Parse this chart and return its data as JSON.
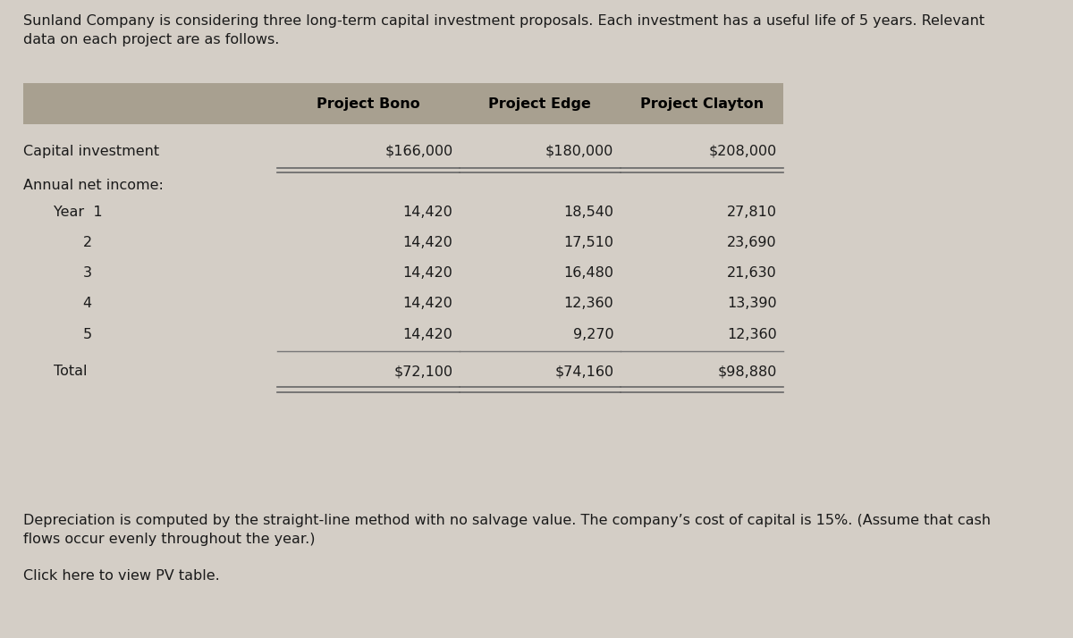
{
  "title_text": "Sunland Company is considering three long-term capital investment proposals. Each investment has a useful life of 5 years. Relevant\ndata on each project are as follows.",
  "header_row": [
    "",
    "Project Bono",
    "Project Edge",
    "Project Clayton"
  ],
  "header_bg": "#a8a090",
  "capital_row": [
    "Capital investment",
    "$166,000",
    "$180,000",
    "$208,000"
  ],
  "annual_label": "Annual net income:",
  "year_rows": [
    [
      "Year  1",
      "14,420",
      "18,540",
      "27,810"
    ],
    [
      "2",
      "14,420",
      "17,510",
      "23,690"
    ],
    [
      "3",
      "14,420",
      "16,480",
      "21,630"
    ],
    [
      "4",
      "14,420",
      "12,360",
      "13,390"
    ],
    [
      "5",
      "14,420",
      "9,270",
      "12,360"
    ]
  ],
  "total_row": [
    "Total",
    "$72,100",
    "$74,160",
    "$98,880"
  ],
  "footer_text": "Depreciation is computed by the straight-line method with no salvage value. The company’s cost of capital is 15%. (Assume that cash\nflows occur evenly throughout the year.)",
  "pv_link": "Click here to view PV table.",
  "bg_color": "#d4cec6",
  "text_color": "#1a1a1a",
  "font_size": 11.5,
  "header_font_size": 11.5,
  "line_color": "#777777",
  "double_line_color": "#666666"
}
